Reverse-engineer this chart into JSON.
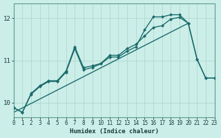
{
  "xlabel": "Humidex (Indice chaleur)",
  "bg_color": "#cceee8",
  "grid_color": "#b0d8d0",
  "line_color": "#1a6b6b",
  "xmin": 0,
  "xmax": 23,
  "ymin": 9.65,
  "ymax": 12.35,
  "yticks": [
    10,
    11,
    12
  ],
  "xticks": [
    0,
    1,
    2,
    3,
    4,
    5,
    6,
    7,
    8,
    9,
    10,
    11,
    12,
    13,
    14,
    15,
    16,
    17,
    18,
    19,
    20,
    21,
    22,
    23
  ],
  "series1_x": [
    0,
    1,
    2,
    3,
    4,
    5,
    6,
    7,
    8,
    9,
    10,
    11,
    12,
    13,
    14,
    15,
    16,
    17,
    18,
    19,
    20,
    21,
    22,
    23
  ],
  "series1_y": [
    9.88,
    9.77,
    10.22,
    10.4,
    10.52,
    10.52,
    10.75,
    11.32,
    10.83,
    10.87,
    10.93,
    11.12,
    11.12,
    11.28,
    11.38,
    11.58,
    11.78,
    11.82,
    11.98,
    12.02,
    11.88,
    11.03,
    10.58,
    10.58
  ],
  "series2_x": [
    0,
    1,
    2,
    3,
    4,
    5,
    6,
    7,
    8,
    9,
    10,
    11,
    12,
    13,
    14,
    15,
    16,
    17,
    18,
    19,
    20,
    21,
    22,
    23
  ],
  "series2_y": [
    9.88,
    9.77,
    10.2,
    10.38,
    10.5,
    10.5,
    10.72,
    11.28,
    10.78,
    10.83,
    10.92,
    11.08,
    11.08,
    11.22,
    11.32,
    11.72,
    12.03,
    12.03,
    12.08,
    12.08,
    11.88,
    11.03,
    10.58,
    10.58
  ],
  "series3_x": [
    0,
    20
  ],
  "series3_y": [
    9.77,
    11.88
  ],
  "marker_size": 2.5,
  "linewidth": 1.0,
  "tick_fontsize": 5.5,
  "xlabel_fontsize": 6.5
}
